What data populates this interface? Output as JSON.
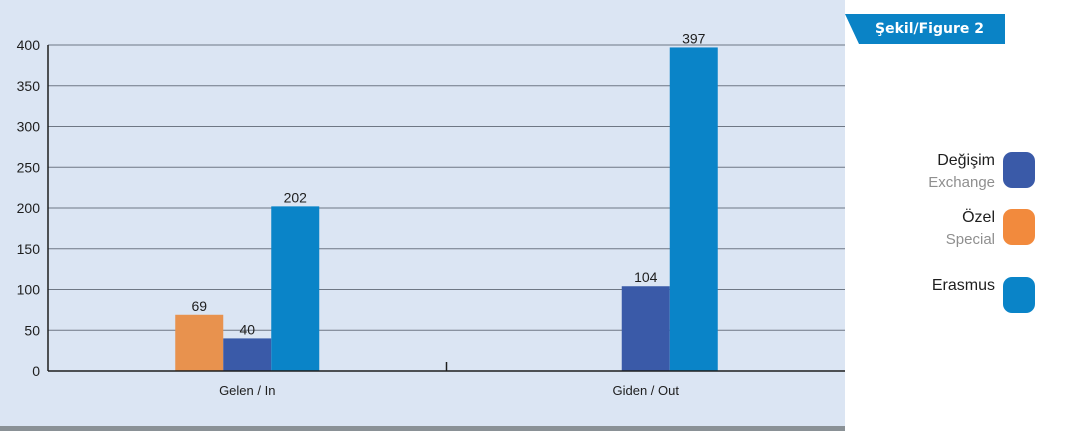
{
  "figure_label": "Şekil/Figure 2",
  "legend": [
    {
      "label": "Değişim",
      "sublabel": "Exchange",
      "color": "#3a5aa8"
    },
    {
      "label": "Özel",
      "sublabel": "Special",
      "color": "#f28a3d"
    },
    {
      "label": "Erasmus",
      "sublabel": "",
      "color": "#0a84c8"
    }
  ],
  "chart_data": {
    "type": "bar",
    "categories": [
      "Gelen / In",
      "Giden / Out"
    ],
    "ylim": [
      0,
      400
    ],
    "yticks": [
      0,
      50,
      100,
      150,
      200,
      250,
      300,
      350,
      400
    ],
    "grid": true,
    "legend_position": "right",
    "series": [
      {
        "name": "Özel",
        "color": "#e8924e",
        "values": [
          69,
          null
        ]
      },
      {
        "name": "Değişim",
        "color": "#3a5aa8",
        "values": [
          40,
          104
        ]
      },
      {
        "name": "Erasmus",
        "color": "#0a84c8",
        "values": [
          202,
          397
        ]
      }
    ]
  }
}
